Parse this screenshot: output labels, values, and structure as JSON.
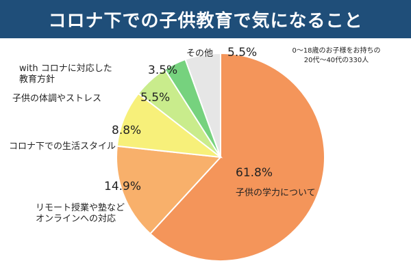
{
  "header": {
    "title": "コロナ下での子供教育で気になること"
  },
  "note": {
    "line1": "0～18歳のお子様をお持ちの",
    "line2": "20代～40代の330人"
  },
  "chart_data": {
    "type": "pie",
    "unit": "%",
    "slices": [
      {
        "label_lines": [
          "子供の学力について"
        ],
        "value": 61.8,
        "value_label": "61.8%",
        "color": "#f4955a"
      },
      {
        "label_lines": [
          "リモート授業や塾など",
          "オンラインへの対応"
        ],
        "value": 14.9,
        "value_label": "14.9%",
        "color": "#f8b06b"
      },
      {
        "label_lines": [
          "コロナ下での生活スタイル"
        ],
        "value": 8.8,
        "value_label": "8.8%",
        "color": "#f7f07a"
      },
      {
        "label_lines": [
          "子供の体調やストレス"
        ],
        "value": 5.5,
        "value_label": "5.5%",
        "color": "#c9ec8c"
      },
      {
        "label_lines": [
          "with コロナに対応した",
          "教育方針"
        ],
        "value": 3.5,
        "value_label": "3.5%",
        "color": "#76d27e"
      },
      {
        "label_lines": [
          "その他"
        ],
        "value": 5.5,
        "value_label": "5.5%",
        "color": "#e6e6e6"
      }
    ]
  }
}
